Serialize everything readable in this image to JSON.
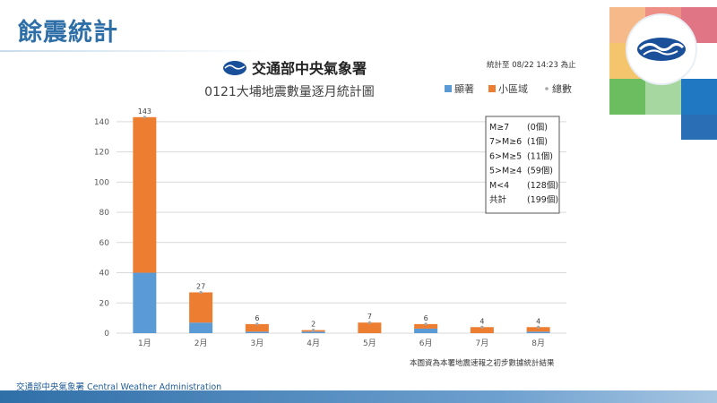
{
  "slide": {
    "title": "餘震統計",
    "footer": "交通部中央氣象署 Central Weather Administration"
  },
  "header": {
    "agency": "交通部中央氣象署",
    "stat_time": "統計至 08/22 14:23 為止",
    "note": "本圖資為本署地震速報之初步數據統計結果"
  },
  "colors": {
    "significant": "#5b9bd5",
    "small_area": "#ed7d31",
    "total_marker": "#a5a5a5",
    "grid": "#d9d9d9",
    "title_blue": "#2f6fa8"
  },
  "magnitude_box": [
    {
      "label": "M≥7",
      "count": "(0個)"
    },
    {
      "label": "7>M≥6",
      "count": "(1個)"
    },
    {
      "label": "6>M≥5",
      "count": "(11個)"
    },
    {
      "label": "5>M≥4",
      "count": "(59個)"
    },
    {
      "label": "M<4",
      "count": "(128個)"
    },
    {
      "label": "共計",
      "count": "(199個)"
    }
  ],
  "chart_data": {
    "type": "bar",
    "stacked": true,
    "title": "0121大埔地震數量逐月統計圖",
    "categories": [
      "1月",
      "2月",
      "3月",
      "4月",
      "5月",
      "6月",
      "7月",
      "8月"
    ],
    "series": [
      {
        "name": "顯著",
        "values": [
          40,
          7,
          1,
          1,
          0,
          3,
          0,
          1
        ]
      },
      {
        "name": "小區域",
        "values": [
          103,
          20,
          5,
          1,
          7,
          3,
          4,
          3
        ]
      }
    ],
    "totals_series_name": "總數",
    "totals": [
      143,
      27,
      6,
      2,
      7,
      6,
      4,
      4
    ],
    "yticks": [
      0,
      20,
      40,
      60,
      80,
      100,
      120,
      140
    ],
    "ylim": [
      0,
      150
    ],
    "grid": true,
    "legend": "top-right"
  }
}
